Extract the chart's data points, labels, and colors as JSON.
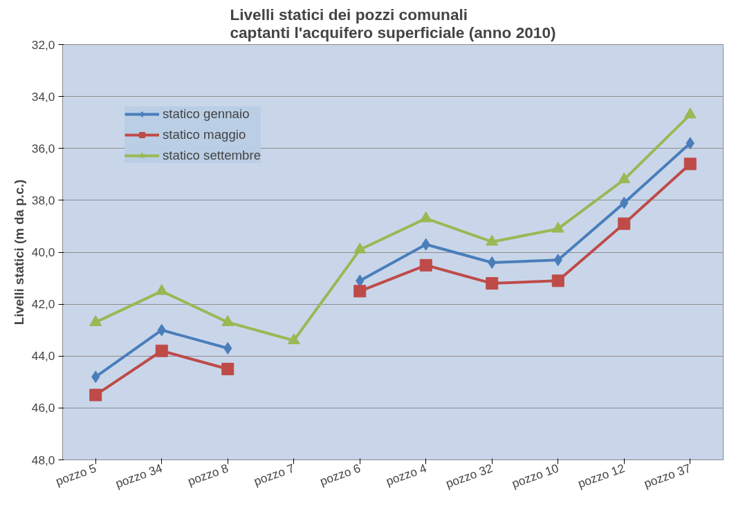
{
  "chart_data": {
    "type": "line",
    "title": "Livelli statici dei pozzi comunali\ncaptanti l'acquifero superficiale (anno 2010)",
    "ylabel": "Livelli statici (m da p.c.)",
    "categories": [
      "pozzo 5",
      "pozzo 34",
      "pozzo 8",
      "pozzo 7",
      "pozzo 6",
      "pozzo 4",
      "pozzo 32",
      "pozzo 10",
      "pozzo 12",
      "pozzo 37"
    ],
    "series": [
      {
        "name": "statico gennaio",
        "color": "#4a7ebb",
        "marker": "diamond",
        "values": [
          44.8,
          43.0,
          43.7,
          null,
          41.1,
          39.7,
          40.4,
          40.3,
          38.1,
          35.8
        ]
      },
      {
        "name": "statico maggio",
        "color": "#be4b48",
        "marker": "square",
        "values": [
          45.5,
          43.8,
          44.5,
          null,
          41.5,
          40.5,
          41.2,
          41.1,
          38.9,
          36.6
        ]
      },
      {
        "name": "statico settembre",
        "color": "#98b954",
        "marker": "triangle",
        "values": [
          42.7,
          41.5,
          42.7,
          43.4,
          39.9,
          38.7,
          39.6,
          39.1,
          37.2,
          34.7
        ]
      }
    ],
    "ylim": [
      48,
      32
    ],
    "yticks": [
      {
        "value": 32,
        "label": "32,0"
      },
      {
        "value": 34,
        "label": "34,0"
      },
      {
        "value": 36,
        "label": "36,0"
      },
      {
        "value": 38,
        "label": "38,0"
      },
      {
        "value": 40,
        "label": "40,0"
      },
      {
        "value": 42,
        "label": "42,0"
      },
      {
        "value": 44,
        "label": "44,0"
      },
      {
        "value": 46,
        "label": "46,0"
      },
      {
        "value": 48,
        "label": "48,0"
      }
    ],
    "grid": "y",
    "legend": "top left",
    "line_style": "solid"
  }
}
